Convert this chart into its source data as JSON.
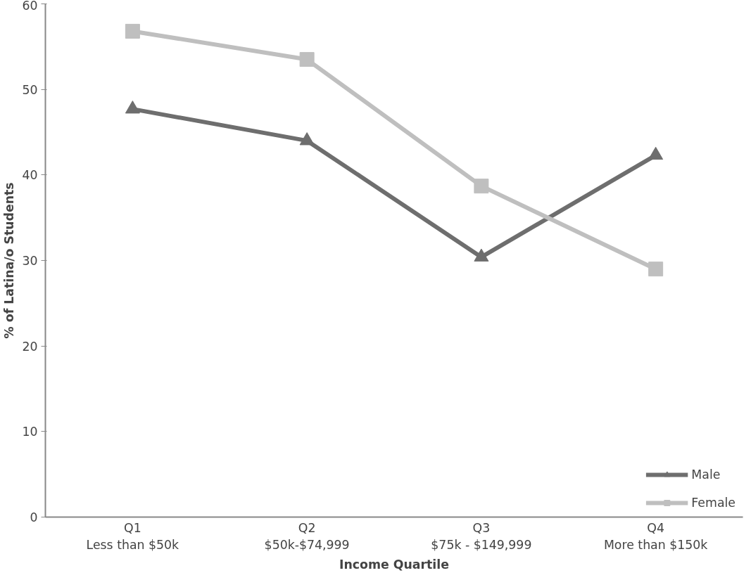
{
  "chart_data": {
    "type": "line",
    "xlabel": "Income Quartile",
    "ylabel": "% of Latina/o Students",
    "categories": [
      "Q1\nLess than $50k",
      "Q2\n$50k-$74,999",
      "Q3\n$75k - $149,999",
      "Q4\nMore than $150k"
    ],
    "series": [
      {
        "name": "Male",
        "color": "#6e6e6e",
        "marker": "triangle",
        "values": [
          47.7,
          44.0,
          30.4,
          42.3
        ]
      },
      {
        "name": "Female",
        "color": "#bfbfbf",
        "marker": "square",
        "values": [
          56.8,
          53.5,
          38.7,
          29.0
        ]
      }
    ],
    "ylim": [
      0,
      60
    ],
    "yticks": [
      0,
      10,
      20,
      30,
      40,
      50,
      60
    ],
    "grid": false,
    "legend": "bottom right",
    "line_style": "solid"
  }
}
